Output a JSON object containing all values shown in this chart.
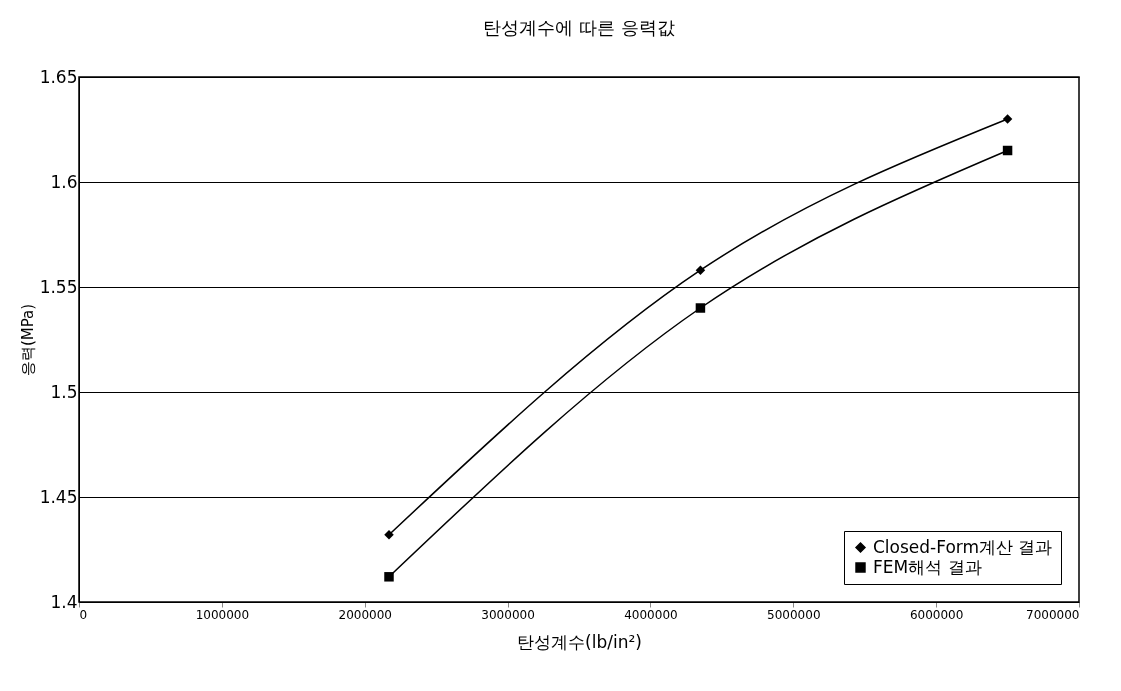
{
  "chart_data": {
    "type": "line",
    "title": "탄성계수에 따른 응력값",
    "xlabel": "탄성계수(lb/in²)",
    "ylabel": "응력(MPa)",
    "x": [
      2170000,
      4350000,
      6500000
    ],
    "series": [
      {
        "name": "Closed-Form계산 결과",
        "color": "#000000",
        "marker": "diamond",
        "values": [
          1.432,
          1.558,
          1.63
        ]
      },
      {
        "name": "FEM해석 결과",
        "color": "#000000",
        "marker": "square",
        "values": [
          1.412,
          1.54,
          1.615
        ]
      }
    ],
    "xlim": [
      0,
      7000000
    ],
    "xticks": [
      0,
      1000000,
      2000000,
      3000000,
      4000000,
      5000000,
      6000000,
      7000000
    ],
    "ylim": [
      1.4,
      1.65
    ],
    "yticks": [
      1.4,
      1.45,
      1.5,
      1.55,
      1.6,
      1.65
    ],
    "grid": "y",
    "legend": "bottom right",
    "line_style": "solid"
  }
}
